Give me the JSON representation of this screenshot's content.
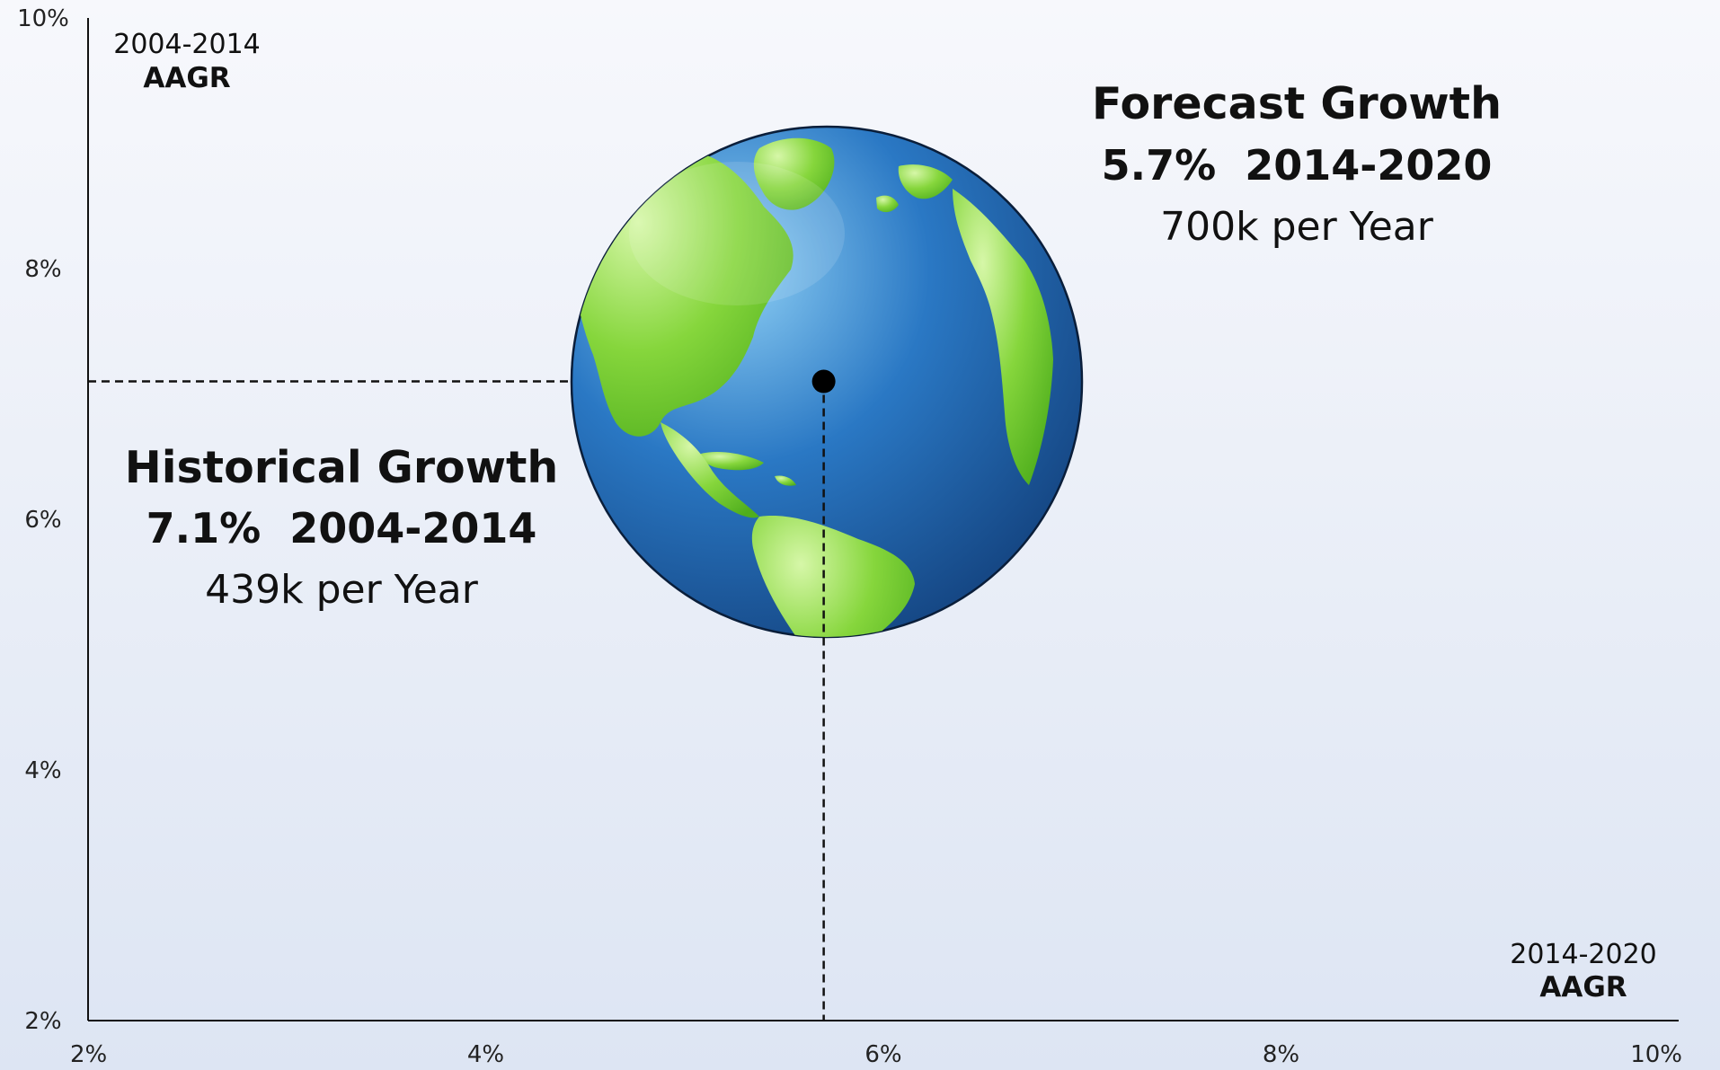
{
  "chart_data": {
    "type": "scatter",
    "xlabel": "2014-2020 AAGR",
    "ylabel": "2004-2014 AAGR",
    "x_axis_label": {
      "range": "2014-2020",
      "metric": "AAGR"
    },
    "y_axis_label": {
      "range": "2004-2014",
      "metric": "AAGR"
    },
    "xlim": [
      2,
      10
    ],
    "ylim": [
      2,
      10
    ],
    "x_ticks": [
      "2%",
      "4%",
      "6%",
      "8%",
      "10%"
    ],
    "x_tick_values": [
      2,
      4,
      6,
      8,
      10
    ],
    "y_ticks": [
      "2%",
      "4%",
      "6%",
      "8%",
      "10%"
    ],
    "y_tick_values": [
      2,
      4,
      6,
      8,
      10
    ],
    "grid": false,
    "points": [
      {
        "x": 5.7,
        "y": 7.1,
        "marker": "globe-icon"
      }
    ],
    "annotations": {
      "forecast": {
        "title": "Forecast Growth",
        "line2": "5.7%  2014-2020",
        "line3": "700k per Year"
      },
      "historical": {
        "title": "Historical Growth",
        "line2": "7.1%  2004-2014",
        "line3": "439k per Year"
      }
    }
  },
  "colors": {
    "ocean": "#1f5fa8",
    "land": "#7ed43a",
    "axis": "#111111"
  }
}
